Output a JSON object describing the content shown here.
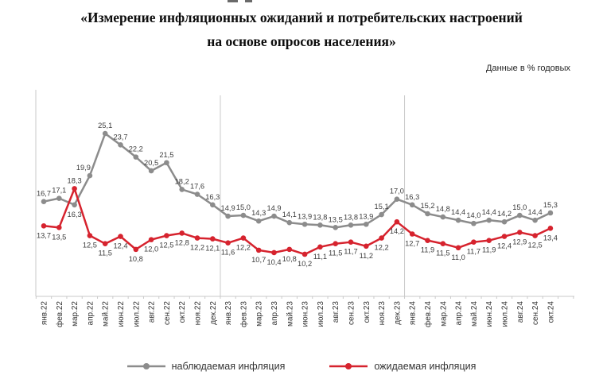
{
  "title": {
    "line1": "«Измерение инфляционных ожиданий и потребительских настроений",
    "line2": "на основе опросов населения»"
  },
  "units_note": "Данные в % годовых",
  "chart_data": {
    "type": "line",
    "title": "Измерение инфляционных ожиданий и потребительских настроений на основе опросов населения",
    "units": "% годовых",
    "value_labels": true,
    "decimal_separator": ",",
    "ylim": [
      5,
      30.5
    ],
    "grid": "vertical year separator lines only",
    "legend_position": "bottom",
    "year_separators_after": [
      "дек.22",
      "дек.23"
    ],
    "categories": [
      "янв.22",
      "фев.22",
      "мар.22",
      "апр.22",
      "май.22",
      "июн.22",
      "июл.22",
      "авг.22",
      "сен.22",
      "окт.22",
      "ноя.22",
      "дек.22",
      "янв.23",
      "фев.23",
      "мар.23",
      "апр.23",
      "май.23",
      "июн.23",
      "июл.23",
      "авг.23",
      "сен.23",
      "окт.23",
      "ноя.23",
      "дек.23",
      "янв.24",
      "фев.24",
      "мар.24",
      "апр.24",
      "май.24",
      "июн.24",
      "июл.24",
      "авг.24",
      "сен.24",
      "окт.24"
    ],
    "series": [
      {
        "name": "наблюдаемая инфляция",
        "color": "#8c8c8c",
        "values": [
          16.7,
          17.1,
          16.3,
          19.9,
          25.1,
          23.7,
          22.2,
          20.5,
          21.5,
          18.2,
          17.6,
          16.3,
          14.9,
          15.0,
          14.3,
          14.9,
          14.1,
          13.9,
          13.8,
          13.5,
          13.8,
          13.9,
          15.1,
          17.0,
          16.3,
          15.2,
          14.8,
          14.4,
          14.0,
          14.4,
          14.2,
          15.0,
          14.4,
          15.3
        ]
      },
      {
        "name": "ожидаемая инфляция",
        "color": "#d6232e",
        "values": [
          13.7,
          13.5,
          18.3,
          12.5,
          11.5,
          12.4,
          10.8,
          12.0,
          12.5,
          12.8,
          12.2,
          12.1,
          11.6,
          12.2,
          10.7,
          10.4,
          10.8,
          10.2,
          11.1,
          11.5,
          11.7,
          11.2,
          12.2,
          14.2,
          12.7,
          11.9,
          11.5,
          11.0,
          11.7,
          11.9,
          12.4,
          12.9,
          12.5,
          13.4
        ]
      }
    ]
  }
}
